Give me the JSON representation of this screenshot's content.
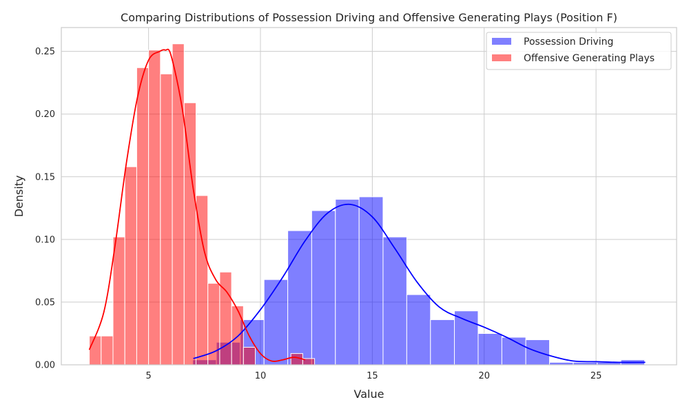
{
  "chart_data": {
    "type": "histogram",
    "title": "Comparing Distributions of Possession Driving and Offensive Generating Plays (Position F)",
    "xlabel": "Value",
    "ylabel": "Density",
    "xlim": [
      1.1,
      28.6
    ],
    "ylim": [
      0,
      0.269
    ],
    "xticks": [
      5,
      10,
      15,
      20,
      25
    ],
    "yticks": [
      0.0,
      0.05,
      0.1,
      0.15,
      0.2,
      0.25
    ],
    "grid": true,
    "legend_position": "top-right",
    "series": [
      {
        "name": "Possession Driving",
        "color": "#0000ff",
        "bin_edges": [
          6.97,
          8.03,
          9.1,
          10.16,
          11.22,
          12.29,
          13.35,
          14.41,
          15.48,
          16.54,
          17.6,
          18.67,
          19.73,
          20.79,
          21.86,
          22.92,
          23.98,
          25.05,
          26.11,
          27.17
        ],
        "densities": [
          0.004,
          0.018,
          0.036,
          0.068,
          0.107,
          0.123,
          0.132,
          0.134,
          0.102,
          0.056,
          0.036,
          0.043,
          0.025,
          0.022,
          0.02,
          0.002,
          0.002,
          0.002,
          0.004
        ],
        "kde_x": [
          7.0,
          8.0,
          9.0,
          10.0,
          11.0,
          12.0,
          13.0,
          14.0,
          15.0,
          16.0,
          17.0,
          18.0,
          19.0,
          20.0,
          21.0,
          22.0,
          23.0,
          24.0,
          25.0,
          26.0,
          27.2
        ],
        "kde_y": [
          0.005,
          0.011,
          0.023,
          0.044,
          0.07,
          0.099,
          0.121,
          0.128,
          0.118,
          0.093,
          0.066,
          0.046,
          0.037,
          0.03,
          0.022,
          0.013,
          0.007,
          0.003,
          0.0025,
          0.002,
          0.002
        ]
      },
      {
        "name": "Offensive Generating Plays",
        "color": "#ff0000",
        "bin_edges": [
          2.35,
          2.88,
          3.41,
          3.94,
          4.47,
          5.0,
          5.53,
          6.06,
          6.59,
          7.12,
          7.65,
          8.18,
          8.71,
          9.24,
          9.77,
          10.3,
          10.83,
          11.36,
          11.89,
          12.42
        ],
        "densities": [
          0.023,
          0.023,
          0.102,
          0.158,
          0.237,
          0.251,
          0.232,
          0.256,
          0.209,
          0.135,
          0.065,
          0.074,
          0.047,
          0.014,
          0.0,
          0.0,
          0.0,
          0.009,
          0.005
        ],
        "kde_x": [
          2.35,
          3.0,
          3.5,
          4.0,
          4.5,
          5.0,
          5.5,
          5.75,
          6.0,
          6.5,
          7.0,
          7.5,
          8.0,
          8.5,
          9.0,
          9.5,
          10.0,
          10.5,
          11.0,
          11.5,
          12.0
        ],
        "kde_y": [
          0.012,
          0.042,
          0.095,
          0.16,
          0.213,
          0.243,
          0.25,
          0.251,
          0.247,
          0.205,
          0.14,
          0.09,
          0.068,
          0.058,
          0.043,
          0.023,
          0.009,
          0.003,
          0.004,
          0.006,
          0.004
        ]
      }
    ]
  }
}
